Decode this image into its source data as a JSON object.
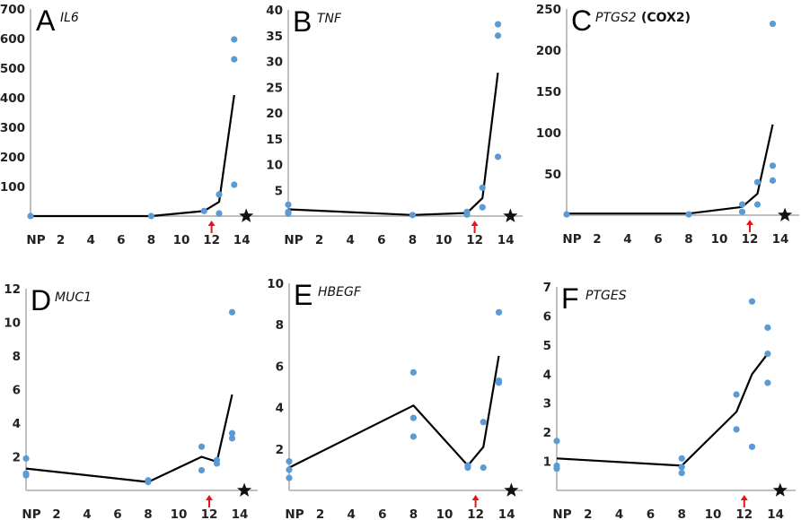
{
  "chart_data": [
    {
      "type": "scatter",
      "panel": "A",
      "title": "IL6",
      "title_extra": "",
      "ylim": [
        0,
        700
      ],
      "yticks": [
        100,
        200,
        300,
        400,
        500,
        600,
        700
      ],
      "xlim": [
        0,
        15.5
      ],
      "xticks": [
        {
          "v": 0,
          "label": "NP"
        },
        {
          "v": 2,
          "label": "2"
        },
        {
          "v": 4,
          "label": "4"
        },
        {
          "v": 6,
          "label": "6"
        },
        {
          "v": 8,
          "label": "8"
        },
        {
          "v": 10,
          "label": "10"
        },
        {
          "v": 12,
          "label": "12"
        },
        {
          "v": 14,
          "label": "14"
        }
      ],
      "points": [
        [
          0,
          0
        ],
        [
          8,
          0
        ],
        [
          11.5,
          17
        ],
        [
          12.5,
          73
        ],
        [
          12.5,
          9
        ],
        [
          13.5,
          597
        ],
        [
          13.5,
          530
        ],
        [
          13.5,
          106
        ]
      ],
      "mean_line": [
        [
          0,
          0
        ],
        [
          8,
          0
        ],
        [
          11.5,
          17
        ],
        [
          12.5,
          48
        ],
        [
          13.5,
          409
        ]
      ],
      "arrow_x": 12,
      "star_x": 14.3
    },
    {
      "type": "scatter",
      "panel": "B",
      "title": "TNF",
      "title_extra": "",
      "ylim": [
        0,
        40
      ],
      "yticks": [
        5,
        10,
        15,
        20,
        25,
        30,
        35,
        40
      ],
      "xlim": [
        0,
        15.5
      ],
      "xticks": [
        {
          "v": 0,
          "label": "NP"
        },
        {
          "v": 2,
          "label": "2"
        },
        {
          "v": 4,
          "label": "4"
        },
        {
          "v": 6,
          "label": "6"
        },
        {
          "v": 8,
          "label": "8"
        },
        {
          "v": 10,
          "label": "10"
        },
        {
          "v": 12,
          "label": "12"
        },
        {
          "v": 14,
          "label": "14"
        }
      ],
      "points": [
        [
          0,
          2.2
        ],
        [
          0,
          0.8
        ],
        [
          0,
          0.5
        ],
        [
          8,
          0.2
        ],
        [
          11.5,
          0.8
        ],
        [
          11.5,
          0.3
        ],
        [
          12.5,
          5.5
        ],
        [
          12.5,
          1.7
        ],
        [
          13.5,
          37.2
        ],
        [
          13.5,
          35
        ],
        [
          13.5,
          11.5
        ]
      ],
      "mean_line": [
        [
          0,
          1.3
        ],
        [
          8,
          0.2
        ],
        [
          11.5,
          0.6
        ],
        [
          12.5,
          3.5
        ],
        [
          13.5,
          27.8
        ]
      ],
      "arrow_x": 12,
      "star_x": 14.3
    },
    {
      "type": "scatter",
      "panel": "C",
      "title": "PTGS2",
      "title_extra": "(COX2)",
      "ylim": [
        0,
        250
      ],
      "yticks": [
        50,
        100,
        150,
        200,
        250
      ],
      "xlim": [
        0,
        15.5
      ],
      "xticks": [
        {
          "v": 0,
          "label": "NP"
        },
        {
          "v": 2,
          "label": "2"
        },
        {
          "v": 4,
          "label": "4"
        },
        {
          "v": 6,
          "label": "6"
        },
        {
          "v": 8,
          "label": "8"
        },
        {
          "v": 10,
          "label": "10"
        },
        {
          "v": 12,
          "label": "12"
        },
        {
          "v": 14,
          "label": "14"
        }
      ],
      "points": [
        [
          0,
          1
        ],
        [
          8,
          1
        ],
        [
          11.5,
          13
        ],
        [
          11.5,
          4
        ],
        [
          12.5,
          40
        ],
        [
          12.5,
          13
        ],
        [
          13.5,
          232
        ],
        [
          13.5,
          60
        ],
        [
          13.5,
          42
        ]
      ],
      "mean_line": [
        [
          0,
          2
        ],
        [
          8,
          2
        ],
        [
          11.5,
          10
        ],
        [
          12.5,
          26
        ],
        [
          13.5,
          110
        ]
      ],
      "arrow_x": 12,
      "star_x": 14.3
    },
    {
      "type": "scatter",
      "panel": "D",
      "title": "MUC1",
      "title_extra": "",
      "ylim": [
        0,
        12
      ],
      "yticks": [
        2,
        4,
        6,
        8,
        10,
        12
      ],
      "xlim": [
        0,
        15.5
      ],
      "xticks": [
        {
          "v": 0,
          "label": "NP"
        },
        {
          "v": 2,
          "label": "2"
        },
        {
          "v": 4,
          "label": "4"
        },
        {
          "v": 6,
          "label": "6"
        },
        {
          "v": 8,
          "label": "8"
        },
        {
          "v": 10,
          "label": "10"
        },
        {
          "v": 12,
          "label": "12"
        },
        {
          "v": 14,
          "label": "14"
        }
      ],
      "points": [
        [
          0,
          1.9
        ],
        [
          0,
          1.0
        ],
        [
          0,
          0.9
        ],
        [
          8,
          0.6
        ],
        [
          8,
          0.5
        ],
        [
          11.5,
          2.6
        ],
        [
          11.5,
          1.2
        ],
        [
          12.5,
          1.8
        ],
        [
          12.5,
          1.6
        ],
        [
          13.5,
          10.6
        ],
        [
          13.5,
          3.4
        ],
        [
          13.5,
          3.1
        ]
      ],
      "mean_line": [
        [
          0,
          1.3
        ],
        [
          8,
          0.5
        ],
        [
          11.5,
          2.0
        ],
        [
          12.5,
          1.7
        ],
        [
          13.5,
          5.7
        ]
      ],
      "arrow_x": 12,
      "star_x": 14.3
    },
    {
      "type": "scatter",
      "panel": "E",
      "title": "HBEGF",
      "title_extra": "",
      "ylim": [
        0,
        10
      ],
      "yticks": [
        2,
        4,
        6,
        8,
        10
      ],
      "xlim": [
        0,
        15.5
      ],
      "xticks": [
        {
          "v": 0,
          "label": "NP"
        },
        {
          "v": 2,
          "label": "2"
        },
        {
          "v": 4,
          "label": "4"
        },
        {
          "v": 6,
          "label": "6"
        },
        {
          "v": 8,
          "label": "8"
        },
        {
          "v": 10,
          "label": "10"
        },
        {
          "v": 12,
          "label": "12"
        },
        {
          "v": 14,
          "label": "14"
        }
      ],
      "points": [
        [
          0,
          1.4
        ],
        [
          0,
          1.0
        ],
        [
          0,
          0.6
        ],
        [
          8,
          5.7
        ],
        [
          8,
          3.5
        ],
        [
          8,
          2.6
        ],
        [
          11.5,
          1.2
        ],
        [
          11.5,
          1.1
        ],
        [
          12.5,
          3.3
        ],
        [
          12.5,
          1.1
        ],
        [
          13.5,
          8.6
        ],
        [
          13.5,
          5.3
        ],
        [
          13.5,
          5.2
        ]
      ],
      "mean_line": [
        [
          0,
          1.1
        ],
        [
          8,
          4.1
        ],
        [
          11.5,
          1.2
        ],
        [
          12.5,
          2.1
        ],
        [
          13.5,
          6.5
        ]
      ],
      "arrow_x": 12,
      "star_x": 14.3
    },
    {
      "type": "scatter",
      "panel": "F",
      "title": "PTGES",
      "title_extra": "",
      "ylim": [
        0,
        7
      ],
      "yticks": [
        1,
        2,
        3,
        4,
        5,
        6,
        7
      ],
      "xlim": [
        0,
        15.5
      ],
      "xticks": [
        {
          "v": 0,
          "label": "NP"
        },
        {
          "v": 2,
          "label": "2"
        },
        {
          "v": 4,
          "label": "4"
        },
        {
          "v": 6,
          "label": "6"
        },
        {
          "v": 8,
          "label": "8"
        },
        {
          "v": 10,
          "label": "10"
        },
        {
          "v": 12,
          "label": "12"
        },
        {
          "v": 14,
          "label": "14"
        }
      ],
      "points": [
        [
          0,
          1.7
        ],
        [
          0,
          0.85
        ],
        [
          0,
          0.75
        ],
        [
          8,
          1.1
        ],
        [
          8,
          0.8
        ],
        [
          8,
          0.6
        ],
        [
          11.5,
          3.3
        ],
        [
          11.5,
          2.1
        ],
        [
          12.5,
          6.5
        ],
        [
          12.5,
          1.5
        ],
        [
          13.5,
          5.6
        ],
        [
          13.5,
          4.7
        ],
        [
          13.5,
          3.7
        ]
      ],
      "mean_line": [
        [
          0,
          1.1
        ],
        [
          8,
          0.85
        ],
        [
          11.5,
          2.7
        ],
        [
          12.5,
          4.0
        ],
        [
          13.5,
          4.7
        ]
      ],
      "arrow_x": 12,
      "star_x": 14.3
    }
  ],
  "colors": {
    "points": "#5B9BD5",
    "line": "#000000",
    "axis": "#BFBFBF",
    "arrow": "#E8141B",
    "star": "#111111"
  }
}
